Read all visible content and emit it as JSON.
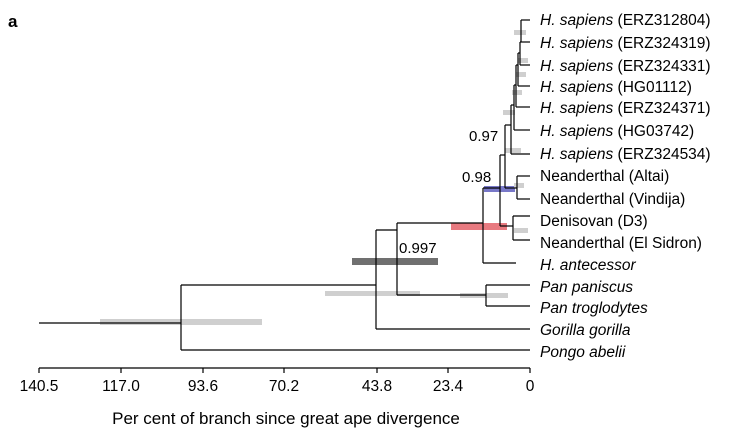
{
  "panel_label": "a",
  "colors": {
    "branch": "#000000",
    "ci_light": "#cfcfcf",
    "ci_dark": "#707070",
    "ci_blue": "#7878c8",
    "ci_red": "#e87a80"
  },
  "axis": {
    "label": "Per cent of branch since great ape divergence",
    "ticks": [
      "140.5",
      "117.0",
      "93.6",
      "70.2",
      "43.8",
      "23.4",
      "0"
    ],
    "tick_values": [
      140.5,
      117.0,
      93.6,
      70.2,
      43.8,
      23.4,
      0
    ],
    "range": [
      140.5,
      0
    ]
  },
  "taxa": [
    {
      "genus": "H. sapiens",
      "id": " (ERZ312804)",
      "italic_all": false
    },
    {
      "genus": "H. sapiens",
      "id": " (ERZ324319)",
      "italic_all": false
    },
    {
      "genus": "H. sapiens",
      "id": " (ERZ324331)",
      "italic_all": false
    },
    {
      "genus": "H. sapiens",
      "id": " (HG01112)",
      "italic_all": false
    },
    {
      "genus": "H. sapiens",
      "id": " (ERZ324371)",
      "italic_all": false
    },
    {
      "genus": "H. sapiens",
      "id": " (HG03742)",
      "italic_all": false
    },
    {
      "genus": "H. sapiens",
      "id": " (ERZ324534)",
      "italic_all": false
    },
    {
      "genus": "",
      "id": "Neanderthal (Altai)",
      "italic_all": false
    },
    {
      "genus": "",
      "id": "Neanderthal (Vindija)",
      "italic_all": false
    },
    {
      "genus": "",
      "id": "Denisovan (D3)",
      "italic_all": false
    },
    {
      "genus": "",
      "id": "Neanderthal (El Sidron)",
      "italic_all": false
    },
    {
      "genus": "H. antecessor",
      "id": "",
      "italic_all": true
    },
    {
      "genus": "Pan paniscus",
      "id": "",
      "italic_all": true
    },
    {
      "genus": "Pan troglodytes",
      "id": "",
      "italic_all": true
    },
    {
      "genus": "Gorilla gorilla",
      "id": "",
      "italic_all": true
    },
    {
      "genus": "Pongo abelii",
      "id": "",
      "italic_all": true
    }
  ],
  "supports": [
    "0.97",
    "0.98",
    "0.997"
  ]
}
